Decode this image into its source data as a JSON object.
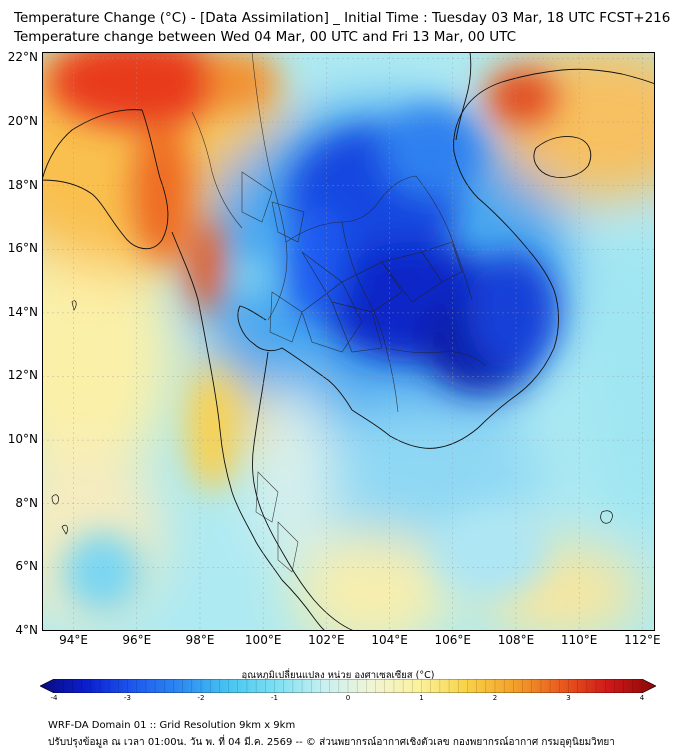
{
  "title": {
    "line1": "Temperature Change (°C) - [Data Assimilation] _ Initial Time : Tuesday 03 Mar, 18 UTC FCST+216",
    "line2": "Temperature change between Wed 04 Mar, 00 UTC and Fri 13 Mar, 00 UTC"
  },
  "map": {
    "lat_labels": [
      "22°N",
      "20°N",
      "18°N",
      "16°N",
      "14°N",
      "12°N",
      "10°N",
      "8°N",
      "6°N",
      "4°N"
    ],
    "lat_values": [
      22,
      20,
      18,
      16,
      14,
      12,
      10,
      8,
      6,
      4
    ],
    "lon_labels": [
      "94°E",
      "96°E",
      "98°E",
      "100°E",
      "102°E",
      "104°E",
      "106°E",
      "108°E",
      "110°E",
      "112°E"
    ],
    "lon_values": [
      94,
      96,
      98,
      100,
      102,
      104,
      106,
      108,
      110,
      112
    ],
    "extent": {
      "lon_min": 93,
      "lon_max": 112.4,
      "lat_min": 4,
      "lat_max": 22.2
    },
    "ocean_color": "#aeeaf2",
    "land_border_color": "#111111"
  },
  "colorbar": {
    "title": "อุณหภูมิเปลี่ยนแปลง หน่วย องศาเซลเซียส (°C)",
    "tick_labels": [
      "-4",
      "-3",
      "-2",
      "-1",
      "0",
      "1",
      "2",
      "3",
      "4"
    ],
    "tick_values": [
      -4,
      -3,
      -2,
      -1,
      0,
      1,
      2,
      3,
      4
    ],
    "range": [
      -4,
      4
    ],
    "colors": [
      "#0a0a80",
      "#0b1fd0",
      "#1e5af0",
      "#2e8cf2",
      "#46c6f2",
      "#7fe0f2",
      "#c8f0f0",
      "#f2f5d6",
      "#fbf29c",
      "#f9d246",
      "#f3a12a",
      "#ea5a1e",
      "#d01818",
      "#8a0808"
    ]
  },
  "footer": {
    "line1": "WRF-DA Domain 01 :: Grid Resolution 9km x 9km",
    "line2": "ปรับปรุงข้อมูล ณ เวลา 01:00น. วัน พ. ที่ 04 มี.ค. 2569 -- © ส่วนพยากรณ์อากาศเชิงตัวเลข กองพยากรณ์อากาศ กรมอุตุนิยมวิทยา"
  }
}
